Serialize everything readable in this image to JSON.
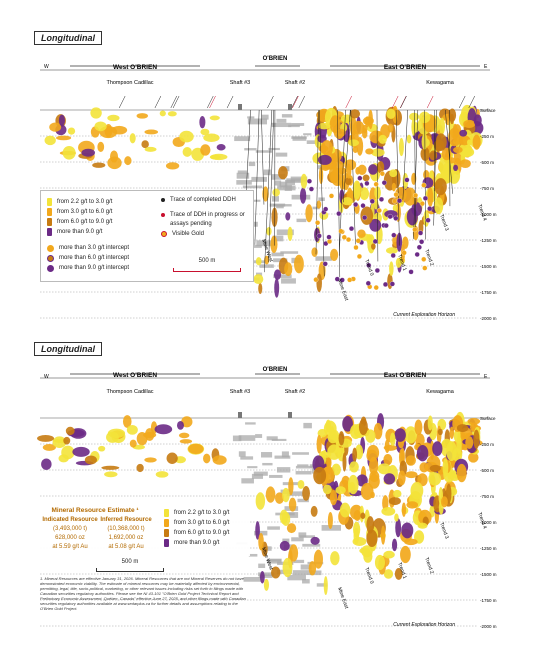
{
  "panels": [
    {
      "title": "Longitudinal",
      "compass": {
        "west": "W",
        "east": "E"
      },
      "zones": {
        "west": "West O'BRIEN",
        "center": "O'BRIEN",
        "east": "East O'BRIEN"
      },
      "places": {
        "thompson": "Thompson Cadillac",
        "shaft3": "Shaft #3",
        "shaft2": "Shaft #2",
        "kewagama": "Kewagama"
      },
      "depths": [
        "Surface",
        "-250 m",
        "-500 m",
        "-750 m",
        "-1000 m",
        "-1250 m",
        "-1500 m",
        "-1750 m",
        "-2000 m"
      ],
      "horizon": "Current Exploration Horizon",
      "trends": [
        "Mine West",
        "Mine East",
        "Trend 0",
        "Trend 1",
        "Trend 2",
        "Trend 3",
        "Trend 4"
      ],
      "legend": {
        "grades": [
          "from 2.2  g/t to 3.0 g/t",
          "from 3.0  g/t to 6.0 g/t",
          "from 6.0 g/t to 9.0 g/t",
          "more than 9.0 g/t"
        ],
        "intercepts": [
          "more than 3.0 g/t intercept",
          "more than 6.0 g/t intercept",
          "more than 9.0 g/t intercept"
        ],
        "ddh": [
          "Trace of completed DDH",
          "Trace of DDH in progress or assays pending",
          "Visible Gold"
        ],
        "scale": "500 m"
      }
    },
    {
      "title": "Longitudinal",
      "compass": {
        "west": "W",
        "east": "E"
      },
      "zones": {
        "west": "West O'BRIEN",
        "center": "O'BRIEN",
        "east": "East O'BRIEN"
      },
      "places": {
        "thompson": "Thompson Cadillac",
        "shaft3": "Shaft #3",
        "shaft2": "Shaft #2",
        "kewagama": "Kewagama"
      },
      "depths": [
        "Surface",
        "-250 m",
        "-500 m",
        "-750 m",
        "-1000 m",
        "-1250 m",
        "-1500 m",
        "-1750 m",
        "-2000 m"
      ],
      "horizon": "Current Exploration Horizon",
      "trends": [
        "Mine West",
        "Mine East",
        "Trend 0",
        "Trend 1",
        "Trend 2",
        "Trend 3",
        "Trend 4"
      ],
      "resource": {
        "heading": "Mineral Resource Estimate ¹",
        "indicated": {
          "label": "Indicated Resource",
          "tonnes": "(3,493,000 t)",
          "ounces": "628,000 oz",
          "grade": "at 5.59 g/t Au"
        },
        "inferred": {
          "label": "Inferred Resource",
          "tonnes": "(10,368,000 t)",
          "ounces": "1,692,000 oz",
          "grade": "at 5.08 g/t Au"
        }
      },
      "legend": {
        "grades": [
          "from 2.2 g/t to 3.0 g/t",
          "from 3.0 g/t to 6.0 g/t",
          "from 6.0 g/t to 9.0 g/t",
          "more than 9.0 g/t"
        ],
        "scale": "500 m"
      },
      "footnote": "1. Mineral Resources are effective January 31, 2026. Mineral Resources that are not Mineral Reserves do not have demonstrated economic viability. The estimate of mineral resources may be materially affected by environmental, permitting, legal, title, socio-political, marketing, or other relevant issues including risks set forth in filings made with Canadian securities regulatory authorities. Please see the NI 43-101 \"O'Brien Gold Project Technical Report and Preliminary Economic Assessment, Québec, Canada\" effective June 27, 2025, and other filings made with Canadian securities regulatory authorities available at www.sedarplus.ca for further details and assumptions relating to the O'Brien Gold Project."
    }
  ],
  "colors": {
    "low": "#f3e33a",
    "mid": "#f2a81c",
    "high": "#c77b12",
    "top": "#6b2a86",
    "grey": "#a9a9a9",
    "orange_text": "#b36a00"
  }
}
